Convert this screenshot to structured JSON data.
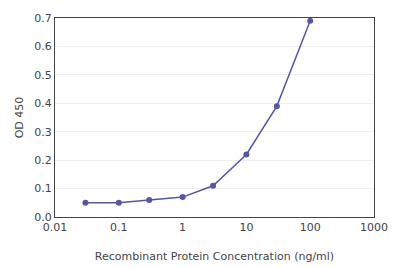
{
  "chart_data": {
    "type": "line",
    "x": [
      0.03,
      0.1,
      0.3,
      1.0,
      3.0,
      10.0,
      30.0,
      100.0
    ],
    "values": [
      0.05,
      0.05,
      0.06,
      0.07,
      0.11,
      0.22,
      0.39,
      0.69
    ],
    "color": "#5555aa",
    "marker": "circle",
    "xlabel": "Recombinant Protein Concentration (ng/ml)",
    "ylabel": "OD 450",
    "log": "x",
    "xlim": [
      0.01,
      1000
    ],
    "ylim": [
      0,
      0.7
    ],
    "xticks": [
      0.01,
      0.1,
      1,
      10,
      100,
      1000
    ],
    "yticks": [
      {
        "value": 0,
        "label": "0.0"
      },
      0.1,
      0.2,
      0.3,
      0.4,
      0.5,
      0.6,
      0.7
    ],
    "grid": "y"
  }
}
